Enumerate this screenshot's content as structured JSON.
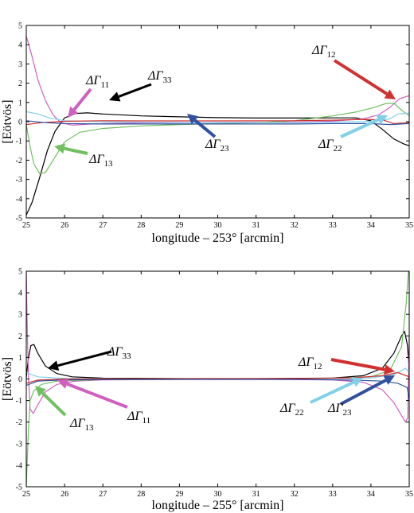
{
  "chart_data": [
    {
      "type": "line",
      "ylabel": "[Eötvös]",
      "xlabel": "longitude – 253° [arcmin]",
      "xlim": [
        25,
        35
      ],
      "ylim": [
        -5,
        5
      ],
      "xticks": [
        "25",
        "26",
        "27",
        "28",
        "29",
        "30",
        "31",
        "32",
        "33",
        "34",
        "35"
      ],
      "yticks": [
        "-5",
        "-4",
        "-3",
        "-2",
        "-1",
        "0",
        "1",
        "2",
        "3",
        "4",
        "5"
      ],
      "grid": false,
      "series": [
        {
          "color": "#000000",
          "points": [
            [
              25,
              -4.85
            ],
            [
              25.15,
              -4.2
            ],
            [
              25.35,
              -2.9
            ],
            [
              25.55,
              -1.5
            ],
            [
              25.75,
              -0.5
            ],
            [
              26.0,
              0.2
            ],
            [
              26.3,
              0.43
            ],
            [
              26.6,
              0.46
            ],
            [
              27,
              0.4
            ],
            [
              28,
              0.3
            ],
            [
              29,
              0.25
            ],
            [
              30,
              0.21
            ],
            [
              31,
              0.19
            ],
            [
              32,
              0.19
            ],
            [
              33,
              0.2
            ],
            [
              33.6,
              0.2
            ],
            [
              34,
              0.05
            ],
            [
              34.3,
              -0.4
            ],
            [
              34.6,
              -0.9
            ],
            [
              34.85,
              -1.15
            ],
            [
              35,
              -1.25
            ]
          ]
        },
        {
          "color": "#d060c0",
          "points": [
            [
              25,
              4.45
            ],
            [
              25.15,
              3.4
            ],
            [
              25.3,
              2.2
            ],
            [
              25.5,
              1.1
            ],
            [
              25.7,
              0.35
            ],
            [
              25.9,
              -0.05
            ],
            [
              26.2,
              -0.18
            ],
            [
              26.6,
              -0.13
            ],
            [
              27,
              -0.1
            ],
            [
              28,
              -0.06
            ],
            [
              30,
              -0.04
            ],
            [
              32,
              -0.02
            ],
            [
              33,
              0.03
            ],
            [
              33.8,
              0.15
            ],
            [
              34.2,
              0.35
            ],
            [
              34.5,
              0.75
            ],
            [
              34.75,
              1.2
            ],
            [
              35,
              1.35
            ]
          ]
        },
        {
          "color": "#70c060",
          "points": [
            [
              25,
              -0.15
            ],
            [
              25.1,
              -1.3
            ],
            [
              25.2,
              -2.2
            ],
            [
              25.35,
              -2.7
            ],
            [
              25.5,
              -2.65
            ],
            [
              25.7,
              -2.0
            ],
            [
              26.0,
              -1.05
            ],
            [
              26.4,
              -0.55
            ],
            [
              27,
              -0.35
            ],
            [
              28,
              -0.22
            ],
            [
              29,
              -0.15
            ],
            [
              30,
              -0.1
            ],
            [
              31,
              -0.05
            ],
            [
              32,
              0.05
            ],
            [
              33,
              0.3
            ],
            [
              33.6,
              0.5
            ],
            [
              34.1,
              0.75
            ],
            [
              34.4,
              0.95
            ],
            [
              34.6,
              0.95
            ],
            [
              34.8,
              0.6
            ],
            [
              35,
              0.3
            ]
          ]
        },
        {
          "color": "#80d0e8",
          "points": [
            [
              25,
              0.52
            ],
            [
              25.3,
              0.4
            ],
            [
              25.6,
              0.2
            ],
            [
              26,
              0.05
            ],
            [
              27,
              0.0
            ],
            [
              28,
              -0.03
            ],
            [
              30,
              -0.05
            ],
            [
              32,
              -0.05
            ],
            [
              33,
              -0.02
            ],
            [
              33.8,
              0.0
            ],
            [
              34.2,
              0.05
            ],
            [
              34.5,
              0.15
            ],
            [
              34.7,
              0.4
            ],
            [
              35,
              0.45
            ]
          ]
        },
        {
          "color": "#d03030",
          "points": [
            [
              25,
              -0.15
            ],
            [
              25.4,
              -0.05
            ],
            [
              26,
              0.02
            ],
            [
              27,
              0.05
            ],
            [
              28,
              0.04
            ],
            [
              30,
              0.04
            ],
            [
              32,
              0.05
            ],
            [
              33,
              0.08
            ],
            [
              33.8,
              0.12
            ],
            [
              34.3,
              0.1
            ],
            [
              34.6,
              -0.1
            ],
            [
              35,
              -0.05
            ]
          ]
        },
        {
          "color": "#3050a0",
          "points": [
            [
              25,
              0.05
            ],
            [
              25.5,
              -0.05
            ],
            [
              26,
              -0.1
            ],
            [
              27,
              -0.12
            ],
            [
              28,
              -0.12
            ],
            [
              30,
              -0.12
            ],
            [
              32,
              -0.12
            ],
            [
              33,
              -0.1
            ],
            [
              34,
              -0.1
            ],
            [
              34.5,
              -0.15
            ],
            [
              35,
              -0.1
            ]
          ]
        }
      ],
      "annotations": [
        {
          "base": "ΔΓ",
          "sub": "11"
        },
        {
          "base": "ΔΓ",
          "sub": "33"
        },
        {
          "base": "ΔΓ",
          "sub": "13"
        },
        {
          "base": "ΔΓ",
          "sub": "23"
        },
        {
          "base": "ΔΓ",
          "sub": "12"
        },
        {
          "base": "ΔΓ",
          "sub": "22"
        }
      ]
    },
    {
      "type": "line",
      "ylabel": "[Eötvös]",
      "xlabel": "longitude – 255° [arcmin]",
      "xlim": [
        25,
        35
      ],
      "ylim": [
        -5,
        5
      ],
      "xticks": [
        "25",
        "26",
        "27",
        "28",
        "29",
        "30",
        "31",
        "32",
        "33",
        "34",
        "35"
      ],
      "yticks": [
        "-5",
        "-4",
        "-3",
        "-2",
        "-1",
        "0",
        "1",
        "2",
        "3",
        "4",
        "5"
      ],
      "grid": false,
      "series": [
        {
          "color": "#000000",
          "points": [
            [
              25,
              0.05
            ],
            [
              25.05,
              0.9
            ],
            [
              25.12,
              1.55
            ],
            [
              25.2,
              1.6
            ],
            [
              25.3,
              1.2
            ],
            [
              25.5,
              0.6
            ],
            [
              25.8,
              0.25
            ],
            [
              26.2,
              0.1
            ],
            [
              27,
              0.04
            ],
            [
              29,
              0.02
            ],
            [
              31,
              0.02
            ],
            [
              33,
              0.04
            ],
            [
              33.8,
              0.15
            ],
            [
              34.3,
              0.5
            ],
            [
              34.6,
              1.2
            ],
            [
              34.8,
              2.0
            ],
            [
              34.88,
              2.2
            ],
            [
              34.95,
              1.6
            ],
            [
              35,
              0.5
            ]
          ]
        },
        {
          "color": "#d060c0",
          "points": [
            [
              25,
              5.0
            ],
            [
              25.03,
              2.0
            ],
            [
              25.06,
              0.0
            ],
            [
              25.1,
              -1.4
            ],
            [
              25.18,
              -1.6
            ],
            [
              25.3,
              -1.2
            ],
            [
              25.5,
              -0.6
            ],
            [
              25.8,
              -0.25
            ],
            [
              26.3,
              -0.1
            ],
            [
              27,
              -0.04
            ],
            [
              29,
              -0.02
            ],
            [
              31,
              -0.02
            ],
            [
              33,
              -0.04
            ],
            [
              33.8,
              -0.15
            ],
            [
              34.3,
              -0.5
            ],
            [
              34.6,
              -1.1
            ],
            [
              34.8,
              -1.7
            ],
            [
              34.9,
              -2.0
            ],
            [
              34.96,
              -1.8
            ],
            [
              35,
              2.0
            ]
          ]
        },
        {
          "color": "#70c060",
          "points": [
            [
              25,
              -5.0
            ],
            [
              25.05,
              -2.6
            ],
            [
              25.1,
              -1.0
            ],
            [
              25.2,
              -0.55
            ],
            [
              25.4,
              -0.25
            ],
            [
              25.8,
              -0.1
            ],
            [
              27,
              -0.03
            ],
            [
              30,
              -0.01
            ],
            [
              33,
              0.02
            ],
            [
              34,
              0.1
            ],
            [
              34.5,
              0.4
            ],
            [
              34.8,
              1.5
            ],
            [
              34.92,
              3.5
            ],
            [
              34.98,
              5.0
            ]
          ]
        },
        {
          "color": "#80d0e8",
          "points": [
            [
              25,
              0.3
            ],
            [
              25.3,
              0.1
            ],
            [
              26,
              0.03
            ],
            [
              28,
              0.0
            ],
            [
              31,
              0.0
            ],
            [
              33,
              0.01
            ],
            [
              34,
              0.05
            ],
            [
              34.6,
              0.2
            ],
            [
              34.9,
              0.5
            ],
            [
              35,
              0.3
            ]
          ]
        },
        {
          "color": "#d03030",
          "points": [
            [
              25,
              -0.2
            ],
            [
              25.3,
              -0.05
            ],
            [
              26,
              0.0
            ],
            [
              29,
              0.01
            ],
            [
              32,
              0.02
            ],
            [
              33.5,
              0.05
            ],
            [
              34.3,
              0.15
            ],
            [
              34.7,
              0.3
            ],
            [
              35,
              0.1
            ]
          ]
        },
        {
          "color": "#3050a0",
          "points": [
            [
              25,
              -0.3
            ],
            [
              25.3,
              -0.1
            ],
            [
              26,
              -0.04
            ],
            [
              29,
              -0.02
            ],
            [
              32,
              -0.02
            ],
            [
              33.5,
              -0.05
            ],
            [
              34.3,
              -0.1
            ],
            [
              34.7,
              -0.2
            ],
            [
              34.95,
              -0.4
            ],
            [
              35,
              -1.0
            ]
          ]
        }
      ],
      "annotations": [
        {
          "base": "ΔΓ",
          "sub": "33"
        },
        {
          "base": "ΔΓ",
          "sub": "13"
        },
        {
          "base": "ΔΓ",
          "sub": "11"
        },
        {
          "base": "ΔΓ",
          "sub": "12"
        },
        {
          "base": "ΔΓ",
          "sub": "22"
        },
        {
          "base": "ΔΓ",
          "sub": "23"
        }
      ]
    }
  ]
}
